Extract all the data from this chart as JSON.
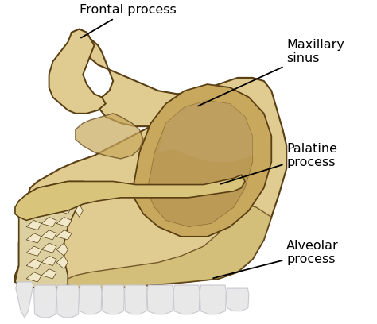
{
  "background_color": "#ffffff",
  "bone_outer": "#d4bc7a",
  "bone_mid": "#ddc88a",
  "bone_light": "#e8d8a8",
  "bone_fill": "#e0cc90",
  "sinus_rim": "#c8a85c",
  "sinus_inner": "#c0a060",
  "sinus_deep": "#b09050",
  "palatine_fill": "#d8c47a",
  "alveolar_fill": "#d0bc74",
  "spongy_fill": "#ddd0a0",
  "tooth_white": "#e8e8e8",
  "tooth_gray": "#c8c8d0",
  "outline_color": "#5a3e14",
  "text_color": "#000000",
  "fontsize": 11.5,
  "labels": {
    "frontal_process": "Frontal process",
    "maxillary_sinus": "Maxillary\nsinus",
    "palatine_process": "Palatine\nprocess",
    "alveolar_process": "Alveolar\nprocess"
  }
}
